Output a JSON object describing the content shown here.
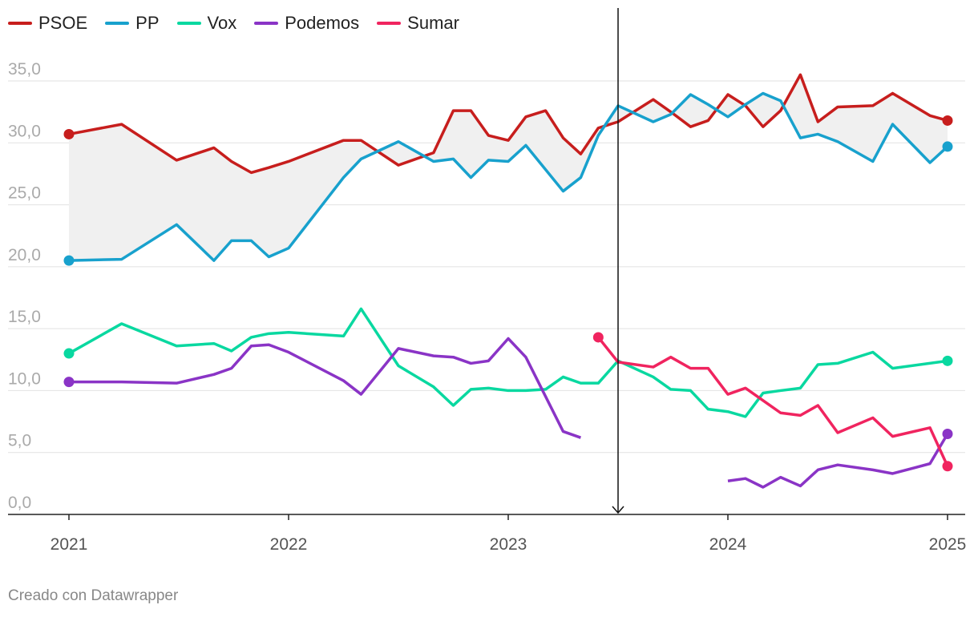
{
  "chart_data": {
    "type": "line",
    "title": "",
    "xlabel": "",
    "ylabel": "",
    "xlim": [
      2021,
      2025
    ],
    "ylim": [
      0,
      35
    ],
    "x_ticks": [
      "2021",
      "2022",
      "2023",
      "2024",
      "2025"
    ],
    "y_ticks": [
      "0,0",
      "5,0",
      "10,0",
      "15,0",
      "20,0",
      "25,0",
      "30,0",
      "35,0"
    ],
    "grid": true,
    "legend_position": "top-left",
    "marker_line_x": 2023.5,
    "shaded_between": [
      "PSOE",
      "PP"
    ],
    "series": [
      {
        "name": "PSOE",
        "color": "#c71e1d",
        "x": [
          2021.0,
          2021.24,
          2021.49,
          2021.66,
          2021.74,
          2021.83,
          2021.91,
          2022.0,
          2022.25,
          2022.33,
          2022.5,
          2022.66,
          2022.75,
          2022.83,
          2022.91,
          2023.0,
          2023.08,
          2023.17,
          2023.25,
          2023.33,
          2023.41,
          2023.5,
          2023.66,
          2023.74,
          2023.83,
          2023.91,
          2024.0,
          2024.08,
          2024.16,
          2024.24,
          2024.33,
          2024.41,
          2024.5,
          2024.66,
          2024.75,
          2024.92,
          2025.0
        ],
        "y": [
          30.7,
          31.5,
          28.6,
          29.6,
          28.5,
          27.6,
          28.0,
          28.5,
          30.2,
          30.2,
          28.2,
          29.2,
          32.6,
          32.6,
          30.6,
          30.2,
          32.1,
          32.6,
          30.4,
          29.1,
          31.2,
          31.7,
          33.5,
          32.5,
          31.3,
          31.8,
          33.9,
          33.0,
          31.3,
          32.6,
          35.5,
          31.7,
          32.9,
          33.0,
          34.0,
          32.2,
          31.8
        ]
      },
      {
        "name": "PP",
        "color": "#18a1cd",
        "x": [
          2021.0,
          2021.24,
          2021.49,
          2021.66,
          2021.74,
          2021.83,
          2021.91,
          2022.0,
          2022.25,
          2022.33,
          2022.5,
          2022.66,
          2022.75,
          2022.83,
          2022.91,
          2023.0,
          2023.08,
          2023.25,
          2023.33,
          2023.41,
          2023.5,
          2023.66,
          2023.74,
          2023.83,
          2023.91,
          2024.0,
          2024.08,
          2024.16,
          2024.24,
          2024.33,
          2024.41,
          2024.5,
          2024.66,
          2024.75,
          2024.92,
          2025.0
        ],
        "y": [
          20.5,
          20.6,
          23.4,
          20.5,
          22.1,
          22.1,
          20.8,
          21.5,
          27.2,
          28.7,
          30.1,
          28.5,
          28.7,
          27.2,
          28.6,
          28.5,
          29.8,
          26.1,
          27.2,
          30.6,
          33.0,
          31.7,
          32.3,
          33.9,
          33.1,
          32.1,
          33.1,
          34.0,
          33.4,
          30.4,
          30.7,
          30.1,
          28.5,
          31.5,
          28.4,
          29.7
        ]
      },
      {
        "name": "Vox",
        "color": "#09d8a0",
        "x": [
          2021.0,
          2021.24,
          2021.49,
          2021.66,
          2021.74,
          2021.83,
          2021.91,
          2022.0,
          2022.25,
          2022.33,
          2022.5,
          2022.66,
          2022.75,
          2022.83,
          2022.91,
          2023.0,
          2023.08,
          2023.17,
          2023.25,
          2023.33,
          2023.41,
          2023.5,
          2023.66,
          2023.74,
          2023.83,
          2023.91,
          2024.0,
          2024.08,
          2024.16,
          2024.24,
          2024.33,
          2024.41,
          2024.5,
          2024.66,
          2024.75,
          2025.0
        ],
        "y": [
          13.0,
          15.4,
          13.6,
          13.8,
          13.2,
          14.3,
          14.6,
          14.7,
          14.4,
          16.6,
          12.0,
          10.3,
          8.8,
          10.1,
          10.2,
          10.0,
          10.0,
          10.1,
          11.1,
          10.6,
          10.6,
          12.4,
          11.1,
          10.1,
          10.0,
          8.5,
          8.3,
          7.9,
          9.8,
          10.0,
          10.2,
          12.1,
          12.2,
          13.1,
          11.8,
          12.4
        ]
      },
      {
        "name": "Podemos",
        "color": "#8a34c6",
        "x": [
          2021.0,
          2021.24,
          2021.49,
          2021.66,
          2021.74,
          2021.83,
          2021.91,
          2022.0,
          2022.25,
          2022.33,
          2022.5,
          2022.66,
          2022.75,
          2022.83,
          2022.91,
          2023.0,
          2023.08,
          2023.25,
          2023.33,
          2023.7,
          2024.0,
          2024.08,
          2024.16,
          2024.24,
          2024.33,
          2024.41,
          2024.5,
          2024.66,
          2024.75,
          2024.92,
          2025.0
        ],
        "y": [
          10.7,
          10.7,
          10.6,
          11.3,
          11.8,
          13.6,
          13.7,
          13.1,
          10.8,
          9.7,
          13.4,
          12.8,
          12.7,
          12.2,
          12.4,
          14.2,
          12.7,
          6.7,
          6.2,
          null,
          2.7,
          2.9,
          2.2,
          3.0,
          2.3,
          3.6,
          4.0,
          3.6,
          3.3,
          4.1,
          6.5
        ]
      },
      {
        "name": "Sumar",
        "color": "#f0245f",
        "x": [
          2023.41,
          2023.5,
          2023.66,
          2023.74,
          2023.83,
          2023.91,
          2024.0,
          2024.08,
          2024.16,
          2024.24,
          2024.33,
          2024.41,
          2024.5,
          2024.66,
          2024.75,
          2024.92,
          2025.0
        ],
        "y": [
          14.3,
          12.3,
          11.9,
          12.7,
          11.8,
          11.8,
          9.7,
          10.2,
          9.2,
          8.2,
          8.0,
          8.8,
          6.6,
          7.8,
          6.3,
          7.0,
          3.9
        ]
      }
    ]
  },
  "footer": {
    "credit": "Creado con Datawrapper"
  }
}
